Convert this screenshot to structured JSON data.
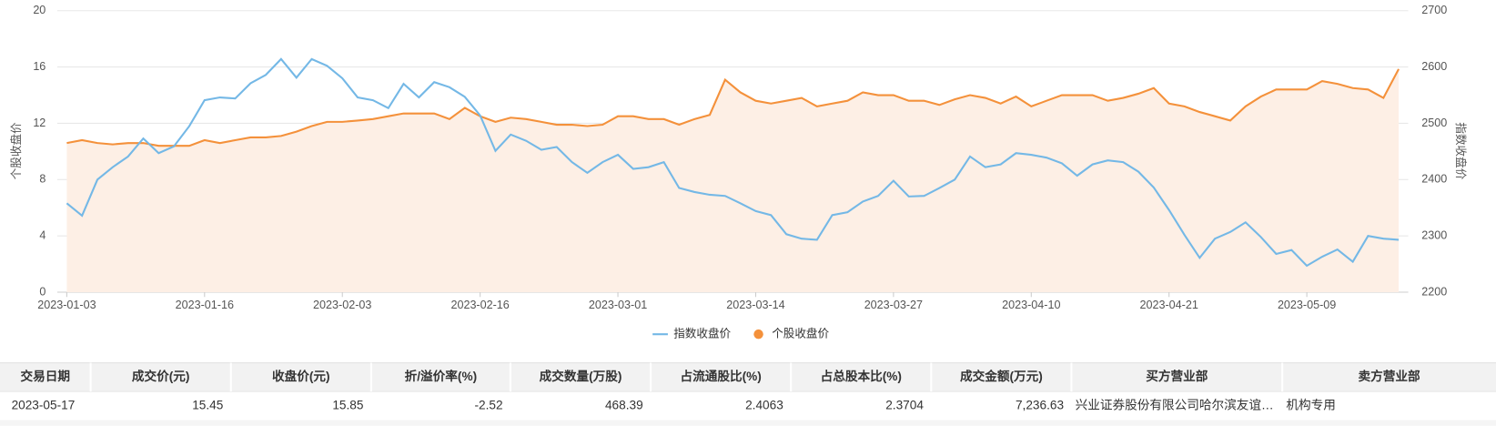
{
  "chart_data": {
    "type": "line",
    "ylabel": "个股收盘价",
    "y2label": "指数收盘价",
    "categories": [
      "2023-01-03",
      null,
      null,
      null,
      null,
      null,
      null,
      null,
      null,
      "2023-01-16",
      null,
      null,
      null,
      null,
      null,
      null,
      null,
      null,
      "2023-02-03",
      null,
      null,
      null,
      null,
      null,
      null,
      null,
      null,
      "2023-02-16",
      null,
      null,
      null,
      null,
      null,
      null,
      null,
      null,
      "2023-03-01",
      null,
      null,
      null,
      null,
      null,
      null,
      null,
      null,
      "2023-03-14",
      null,
      null,
      null,
      null,
      null,
      null,
      null,
      null,
      "2023-03-27",
      null,
      null,
      null,
      null,
      null,
      null,
      null,
      null,
      "2023-04-10",
      null,
      null,
      null,
      null,
      null,
      null,
      null,
      null,
      "2023-04-21",
      null,
      null,
      null,
      null,
      null,
      null,
      null,
      null,
      "2023-05-09",
      null,
      null,
      null,
      null,
      null,
      null
    ],
    "series": [
      {
        "name": "指数收盘价",
        "color": "#74b8e6",
        "axis": "y2",
        "values": [
          2358,
          2336,
          2400,
          2422,
          2441,
          2473,
          2447,
          2459,
          2495,
          2541,
          2546,
          2544,
          2571,
          2586,
          2614,
          2581,
          2614,
          2602,
          2580,
          2546,
          2541,
          2527,
          2570,
          2546,
          2573,
          2564,
          2547,
          2514,
          2451,
          2480,
          2469,
          2453,
          2458,
          2431,
          2412,
          2431,
          2444,
          2419,
          2422,
          2431,
          2385,
          2378,
          2373,
          2371,
          2358,
          2344,
          2337,
          2303,
          2295,
          2293,
          2337,
          2342,
          2361,
          2371,
          2398,
          2370,
          2371,
          2385,
          2400,
          2441,
          2422,
          2427,
          2447,
          2444,
          2439,
          2429,
          2407,
          2427,
          2434,
          2431,
          2414,
          2386,
          2346,
          2302,
          2261,
          2295,
          2307,
          2324,
          2298,
          2268,
          2275,
          2247,
          2263,
          2276,
          2254,
          2300,
          2295,
          2293
        ]
      },
      {
        "name": "个股收盘价",
        "color": "#f4913b",
        "area_color": "#fdefe5",
        "values": [
          10.6,
          10.8,
          10.6,
          10.5,
          10.6,
          10.6,
          10.4,
          10.4,
          10.4,
          10.8,
          10.6,
          10.8,
          11.0,
          11.0,
          11.1,
          11.4,
          11.8,
          12.1,
          12.1,
          12.2,
          12.3,
          12.5,
          12.7,
          12.7,
          12.7,
          12.3,
          13.1,
          12.5,
          12.1,
          12.4,
          12.3,
          12.1,
          11.9,
          11.9,
          11.8,
          11.9,
          12.5,
          12.5,
          12.3,
          12.3,
          11.9,
          12.3,
          12.6,
          15.1,
          14.2,
          13.6,
          13.4,
          13.6,
          13.8,
          13.2,
          13.4,
          13.6,
          14.2,
          14.0,
          14.0,
          13.6,
          13.6,
          13.3,
          13.7,
          14.0,
          13.8,
          13.4,
          13.9,
          13.2,
          13.6,
          14.0,
          14.0,
          14.0,
          13.6,
          13.8,
          14.1,
          14.5,
          13.4,
          13.2,
          12.8,
          12.5,
          12.2,
          13.2,
          13.9,
          14.4,
          14.4,
          14.4,
          15.0,
          14.8,
          14.5,
          14.4,
          13.8,
          15.85
        ]
      }
    ],
    "ylim": [
      0,
      20
    ],
    "yticks": [
      0,
      4,
      8,
      12,
      16,
      20
    ],
    "y2lim": [
      2200,
      2700
    ],
    "y2ticks": [
      2200,
      2300,
      2400,
      2500,
      2600,
      2700
    ],
    "grid": true
  },
  "table": {
    "columns": [
      "交易日期",
      "成交价(元)",
      "收盘价(元)",
      "折/溢价率(%)",
      "成交数量(万股)",
      "占流通股比(%)",
      "占总股本比(%)",
      "成交金额(万元)",
      "买方营业部",
      "卖方营业部"
    ],
    "rows": [
      [
        "2023-05-17",
        "15.45",
        "15.85",
        "-2.52",
        "468.39",
        "2.4063",
        "2.3704",
        "7,236.63",
        "兴业证券股份有限公司哈尔滨友谊…",
        "机构专用"
      ]
    ]
  }
}
